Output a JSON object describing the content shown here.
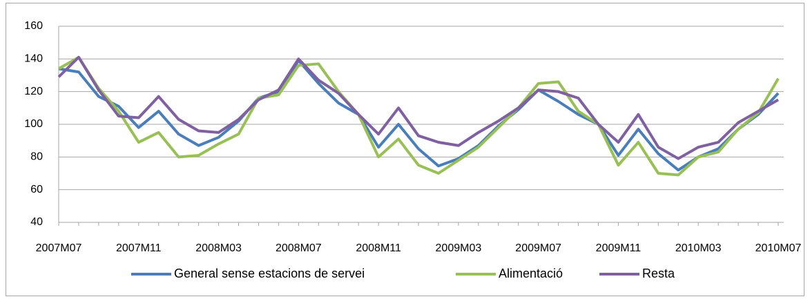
{
  "chart_data": {
    "type": "line",
    "categories": [
      "2007M07",
      null,
      null,
      null,
      "2007M11",
      null,
      null,
      null,
      "2008M03",
      null,
      null,
      null,
      "2008M07",
      null,
      null,
      null,
      "2008M11",
      null,
      null,
      null,
      "2009M03",
      null,
      null,
      null,
      "2009M07",
      null,
      null,
      null,
      "2009M11",
      null,
      null,
      null,
      "2010M03",
      null,
      null,
      null,
      "2010M07"
    ],
    "series": [
      {
        "name": "General sense estacions de servei",
        "color": "#4a7ebb",
        "values": [
          134,
          132,
          117,
          111,
          98,
          108,
          94,
          87,
          92,
          102,
          116,
          120,
          139,
          125,
          113,
          106,
          86,
          100,
          85,
          74.5,
          79,
          87,
          99,
          109,
          121,
          114,
          106,
          100,
          81,
          97,
          82,
          72,
          80,
          85,
          97,
          106,
          119
        ]
      },
      {
        "name": "Alimentació",
        "color": "#98c054",
        "values": [
          134,
          141,
          122,
          108,
          89,
          95,
          80,
          81,
          88,
          94,
          116,
          118,
          136,
          137,
          120,
          106,
          80,
          91,
          75,
          70,
          78,
          86,
          98,
          110,
          125,
          126,
          108,
          100,
          75,
          89,
          70,
          69,
          80,
          83,
          97,
          107,
          128
        ]
      },
      {
        "name": "Resta",
        "color": "#7f60a0",
        "values": [
          129,
          141,
          121,
          105,
          104,
          117,
          103,
          96,
          95,
          103,
          115,
          121,
          140,
          127,
          119,
          106,
          94,
          110,
          93,
          89,
          87,
          95,
          102,
          110,
          121,
          120,
          116,
          100,
          89,
          106,
          86,
          79,
          86,
          89,
          101,
          108,
          115
        ]
      }
    ],
    "ylim": [
      40,
      160
    ],
    "yticks": [
      40,
      60,
      80,
      100,
      120,
      140,
      160
    ],
    "grid": true,
    "legend": "bottom"
  }
}
